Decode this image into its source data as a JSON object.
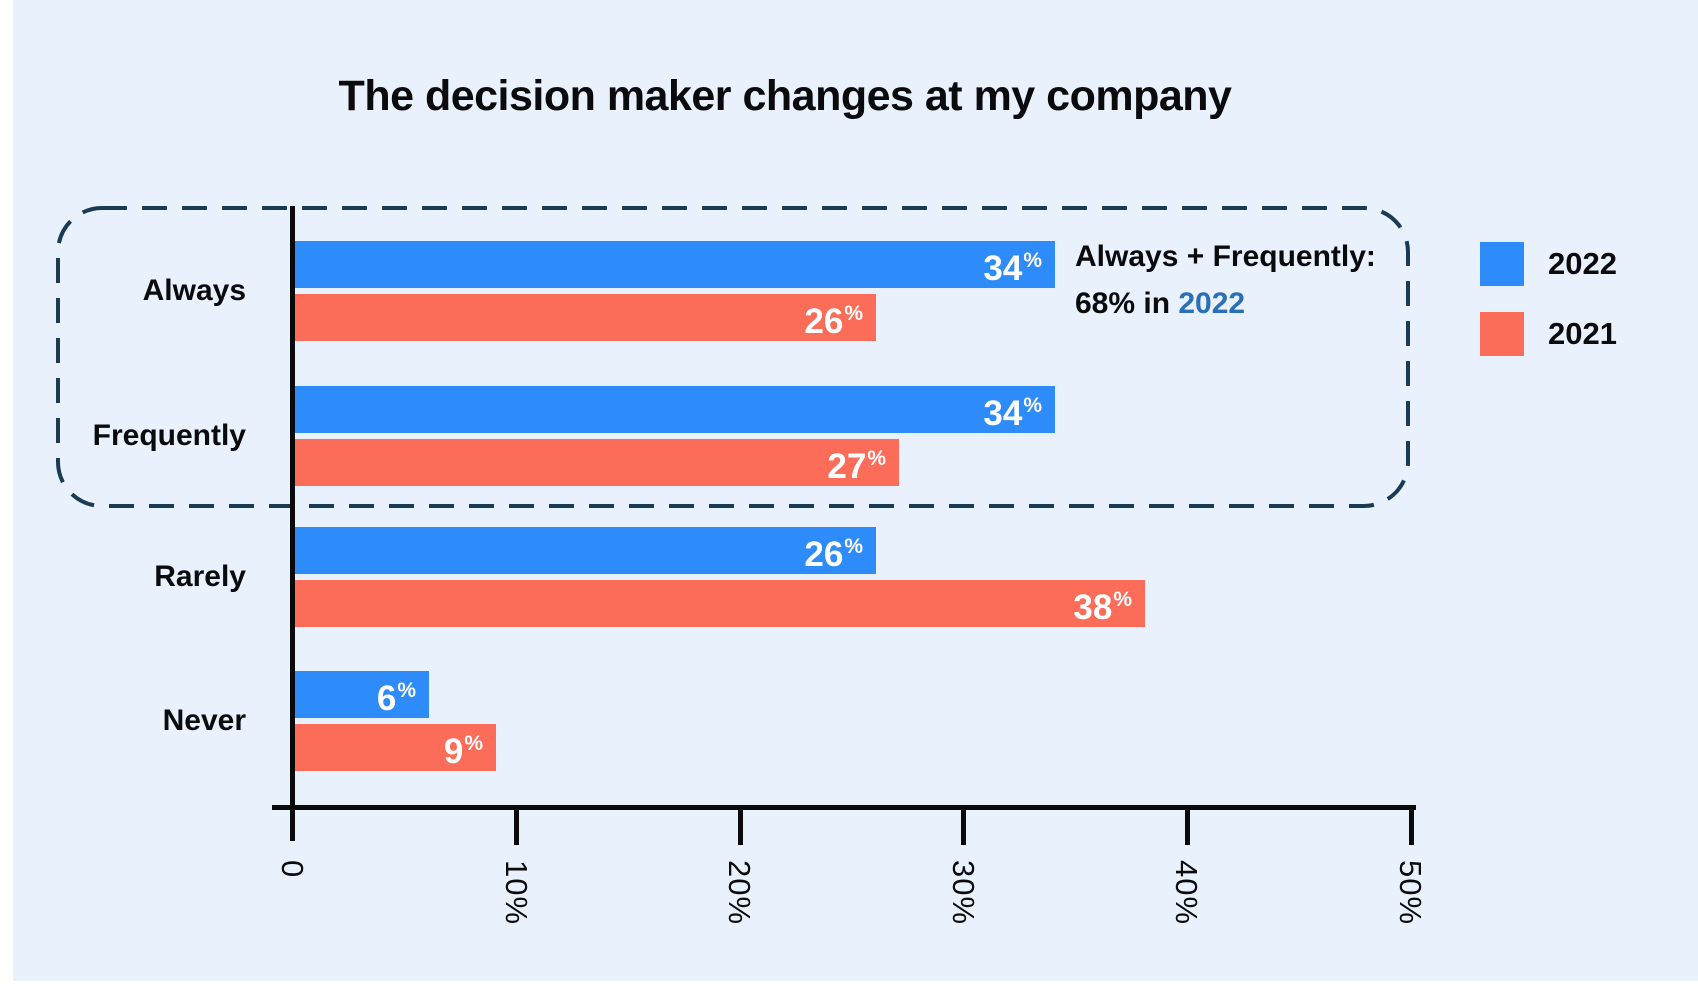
{
  "title": "The decision maker changes at my company",
  "annotation": {
    "line1": "Always + Frequently:",
    "line2_prefix": "68% in ",
    "line2_highlight": "2022"
  },
  "chart_data": {
    "type": "bar",
    "orientation": "horizontal",
    "title": "The decision maker changes at my company",
    "categories": [
      "Always",
      "Frequently",
      "Rarely",
      "Never"
    ],
    "series": [
      {
        "name": "2022",
        "color": "#2E8BFA",
        "values": [
          34,
          34,
          26,
          6
        ]
      },
      {
        "name": "2021",
        "color": "#FB6C59",
        "values": [
          26,
          27,
          38,
          9
        ]
      }
    ],
    "value_suffix": "%",
    "x_ticks": [
      "0",
      "10%",
      "20%",
      "30%",
      "40%",
      "50%"
    ],
    "xlim": [
      0,
      50
    ],
    "grid": false,
    "legend_position": "top-right",
    "annotation_text": "Always + Frequently: 68% in 2022",
    "highlighted_categories": [
      "Always",
      "Frequently"
    ]
  },
  "colors": {
    "page": "#FFFFFF",
    "background": "#E8F1FC",
    "axis": "#0A0A0A",
    "dashed_box": "#1B3A54",
    "text": "#0B0B0D",
    "bar_value_text": "#FFFFFF",
    "annotation_highlight": "#2B70B6",
    "series_2022": "#2E8BFA",
    "series_2021": "#FB6C59"
  }
}
